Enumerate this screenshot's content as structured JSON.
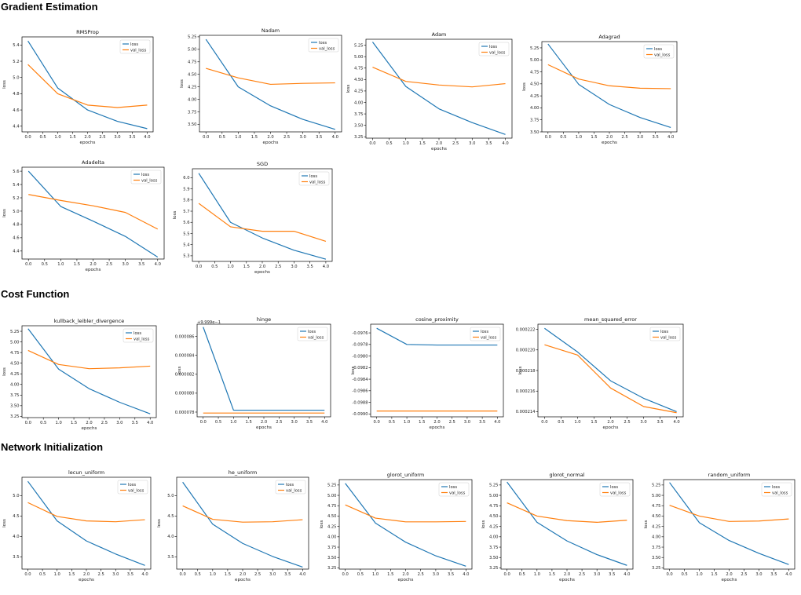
{
  "sections": {
    "gradient": "Gradient Estimation",
    "cost": "Cost Function",
    "init": "Network Initialization"
  },
  "colors": {
    "loss": "#1f77b4",
    "val_loss": "#ff7f0e"
  },
  "chart_data": [
    {
      "type": "line",
      "title": "RMSProp",
      "xlabel": "epochs",
      "ylabel": "loss",
      "x": [
        0,
        1,
        2,
        3,
        4
      ],
      "xlim": [
        -0.2,
        4.2
      ],
      "xticks": [
        "0.0",
        "0.5",
        "1.0",
        "1.5",
        "2.0",
        "2.5",
        "3.0",
        "3.5",
        "4.0"
      ],
      "ylim": [
        4.33,
        5.5
      ],
      "yticks": [
        "4.4",
        "4.6",
        "4.8",
        "5.0",
        "5.2",
        "5.4"
      ],
      "series": [
        {
          "name": "loss",
          "values": [
            5.45,
            4.87,
            4.6,
            4.46,
            4.37
          ]
        },
        {
          "name": "val_loss",
          "values": [
            5.16,
            4.8,
            4.66,
            4.63,
            4.66
          ]
        }
      ]
    },
    {
      "type": "line",
      "title": "Nadam",
      "xlabel": "epochs",
      "ylabel": "loss",
      "x": [
        0,
        1,
        2,
        3,
        4
      ],
      "xlim": [
        -0.2,
        4.2
      ],
      "xticks": [
        "0.0",
        "0.5",
        "1.0",
        "1.5",
        "2.0",
        "2.5",
        "3.0",
        "3.5",
        "4.0"
      ],
      "ylim": [
        3.35,
        5.28
      ],
      "yticks": [
        "3.50",
        "3.75",
        "4.00",
        "4.25",
        "4.50",
        "4.75",
        "5.00",
        "5.25"
      ],
      "series": [
        {
          "name": "loss",
          "values": [
            5.2,
            4.25,
            3.87,
            3.6,
            3.4
          ]
        },
        {
          "name": "val_loss",
          "values": [
            4.62,
            4.43,
            4.3,
            4.32,
            4.33
          ]
        }
      ]
    },
    {
      "type": "line",
      "title": "Adam",
      "xlabel": "epochs",
      "ylabel": "loss",
      "x": [
        0,
        1,
        2,
        3,
        4
      ],
      "xlim": [
        -0.2,
        4.2
      ],
      "xticks": [
        "0.0",
        "0.5",
        "1.0",
        "1.5",
        "2.0",
        "2.5",
        "3.0",
        "3.5",
        "4.0"
      ],
      "ylim": [
        3.22,
        5.38
      ],
      "yticks": [
        "3.25",
        "3.50",
        "3.75",
        "4.00",
        "4.25",
        "4.50",
        "4.75",
        "5.00",
        "5.25"
      ],
      "series": [
        {
          "name": "loss",
          "values": [
            5.32,
            4.35,
            3.86,
            3.56,
            3.3
          ]
        },
        {
          "name": "val_loss",
          "values": [
            4.77,
            4.46,
            4.38,
            4.34,
            4.41
          ]
        }
      ]
    },
    {
      "type": "line",
      "title": "Adagrad",
      "xlabel": "epochs",
      "ylabel": "loss",
      "x": [
        0,
        1,
        2,
        3,
        4
      ],
      "xlim": [
        -0.2,
        4.2
      ],
      "xticks": [
        "0.0",
        "0.5",
        "1.0",
        "1.5",
        "2.0",
        "2.5",
        "3.0",
        "3.5",
        "4.0"
      ],
      "ylim": [
        3.5,
        5.38
      ],
      "yticks": [
        "3.50",
        "3.75",
        "4.00",
        "4.25",
        "4.50",
        "4.75",
        "5.00",
        "5.25"
      ],
      "series": [
        {
          "name": "loss",
          "values": [
            5.33,
            4.49,
            4.07,
            3.8,
            3.59
          ]
        },
        {
          "name": "val_loss",
          "values": [
            4.9,
            4.6,
            4.46,
            4.41,
            4.4
          ]
        }
      ]
    },
    {
      "type": "line",
      "title": "Adadelta",
      "xlabel": "epochs",
      "ylabel": "loss",
      "x": [
        0,
        1,
        2,
        3,
        4
      ],
      "xlim": [
        -0.2,
        4.2
      ],
      "xticks": [
        "0.0",
        "0.5",
        "1.0",
        "1.5",
        "2.0",
        "2.5",
        "3.0",
        "3.5",
        "4.0"
      ],
      "ylim": [
        4.28,
        5.66
      ],
      "yticks": [
        "4.4",
        "4.6",
        "4.8",
        "5.0",
        "5.2",
        "5.4",
        "5.6"
      ],
      "series": [
        {
          "name": "loss",
          "values": [
            5.6,
            5.07,
            4.85,
            4.62,
            4.31
          ]
        },
        {
          "name": "val_loss",
          "values": [
            5.25,
            5.16,
            5.08,
            4.98,
            4.73
          ]
        }
      ]
    },
    {
      "type": "line",
      "title": "SGD",
      "xlabel": "epochs",
      "ylabel": "loss",
      "x": [
        0,
        1,
        2,
        3,
        4
      ],
      "xlim": [
        -0.2,
        4.2
      ],
      "xticks": [
        "0.0",
        "0.5",
        "1.0",
        "1.5",
        "2.0",
        "2.5",
        "3.0",
        "3.5",
        "4.0"
      ],
      "ylim": [
        5.25,
        6.08
      ],
      "yticks": [
        "5.3",
        "5.4",
        "5.5",
        "5.6",
        "5.7",
        "5.8",
        "5.9",
        "6.0"
      ],
      "series": [
        {
          "name": "loss",
          "values": [
            6.04,
            5.6,
            5.46,
            5.35,
            5.27
          ]
        },
        {
          "name": "val_loss",
          "values": [
            5.77,
            5.56,
            5.52,
            5.52,
            5.43
          ]
        }
      ]
    },
    {
      "type": "line",
      "title": "kullback_leibler_divergence",
      "xlabel": "epochs",
      "ylabel": "loss",
      "x": [
        0,
        1,
        2,
        3,
        4
      ],
      "xlim": [
        -0.2,
        4.2
      ],
      "xticks": [
        "0.0",
        "0.5",
        "1.0",
        "1.5",
        "2.0",
        "2.5",
        "3.0",
        "3.5",
        "4.0"
      ],
      "ylim": [
        3.22,
        5.38
      ],
      "yticks": [
        "3.25",
        "3.50",
        "3.75",
        "4.00",
        "4.25",
        "4.50",
        "4.75",
        "5.00",
        "5.25"
      ],
      "series": [
        {
          "name": "loss",
          "values": [
            5.31,
            4.36,
            3.9,
            3.58,
            3.31
          ]
        },
        {
          "name": "val_loss",
          "values": [
            4.8,
            4.47,
            4.37,
            4.39,
            4.43
          ]
        }
      ]
    },
    {
      "type": "line",
      "title": "hinge",
      "xlabel": "epochs",
      "ylabel": "loss",
      "offset": "+9.999e−1",
      "x": [
        0,
        1,
        2,
        3,
        4
      ],
      "xlim": [
        -0.2,
        4.2
      ],
      "xticks": [
        "0.0",
        "0.5",
        "1.0",
        "1.5",
        "2.0",
        "2.5",
        "3.0",
        "3.5",
        "4.0"
      ],
      "ylim": [
        7.75e-05,
        8.73e-05
      ],
      "yticks": [
        "0.000078",
        "0.000080",
        "0.000082",
        "0.000084",
        "0.000086"
      ],
      "series": [
        {
          "name": "loss",
          "values": [
            8.7e-05,
            7.82e-05,
            7.82e-05,
            7.82e-05,
            7.82e-05
          ]
        },
        {
          "name": "val_loss",
          "values": [
            7.79e-05,
            7.79e-05,
            7.79e-05,
            7.79e-05,
            7.79e-05
          ]
        }
      ]
    },
    {
      "type": "line",
      "title": "cosine_proximity",
      "xlabel": "epochs",
      "ylabel": "loss",
      "x": [
        0,
        1,
        2,
        3,
        4
      ],
      "xlim": [
        -0.2,
        4.2
      ],
      "xticks": [
        "0.0",
        "0.5",
        "1.0",
        "1.5",
        "2.0",
        "2.5",
        "3.0",
        "3.5",
        "4.0"
      ],
      "ylim": [
        -0.09905,
        -0.09745
      ],
      "yticks": [
        "-0.0976",
        "-0.0978",
        "-0.0980",
        "-0.0982",
        "-0.0984",
        "-0.0986",
        "-0.0988",
        "-0.0990"
      ],
      "series": [
        {
          "name": "loss",
          "values": [
            -0.09752,
            -0.0978,
            -0.09781,
            -0.09781,
            -0.09781
          ]
        },
        {
          "name": "val_loss",
          "values": [
            -0.09895,
            -0.09895,
            -0.09895,
            -0.09895,
            -0.09895
          ]
        }
      ]
    },
    {
      "type": "line",
      "title": "mean_squared_error",
      "xlabel": "epochs",
      "ylabel": "loss",
      "x": [
        0,
        1,
        2,
        3,
        4
      ],
      "xlim": [
        -0.2,
        4.2
      ],
      "xticks": [
        "0.0",
        "0.5",
        "1.0",
        "1.5",
        "2.0",
        "2.5",
        "3.0",
        "3.5",
        "4.0"
      ],
      "ylim": [
        0.0002135,
        0.0002225
      ],
      "yticks": [
        "0.000214",
        "0.000216",
        "0.000218",
        "0.000220",
        "0.000222"
      ],
      "series": [
        {
          "name": "loss",
          "values": [
            0.0002221,
            0.0002198,
            0.000217,
            0.0002153,
            0.000214
          ]
        },
        {
          "name": "val_loss",
          "values": [
            0.0002205,
            0.0002195,
            0.0002163,
            0.0002145,
            0.0002139
          ]
        }
      ]
    },
    {
      "type": "line",
      "title": "lecun_uniform",
      "xlabel": "epochs",
      "ylabel": "loss",
      "x": [
        0,
        1,
        2,
        3,
        4
      ],
      "xlim": [
        -0.2,
        4.2
      ],
      "xticks": [
        "0.0",
        "0.5",
        "1.0",
        "1.5",
        "2.0",
        "2.5",
        "3.0",
        "3.5",
        "4.0"
      ],
      "ylim": [
        3.2,
        5.45
      ],
      "yticks": [
        "3.5",
        "4.0",
        "4.5",
        "5.0"
      ],
      "series": [
        {
          "name": "loss",
          "values": [
            5.35,
            4.38,
            3.89,
            3.57,
            3.29
          ]
        },
        {
          "name": "val_loss",
          "values": [
            4.83,
            4.49,
            4.38,
            4.36,
            4.41
          ]
        }
      ]
    },
    {
      "type": "line",
      "title": "he_uniform",
      "xlabel": "epochs",
      "ylabel": "loss",
      "x": [
        0,
        1,
        2,
        3,
        4
      ],
      "xlim": [
        -0.2,
        4.2
      ],
      "xticks": [
        "0.0",
        "0.5",
        "1.0",
        "1.5",
        "2.0",
        "2.5",
        "3.0",
        "3.5",
        "4.0"
      ],
      "ylim": [
        3.2,
        5.45
      ],
      "yticks": [
        "3.5",
        "4.0",
        "4.5",
        "5.0"
      ],
      "series": [
        {
          "name": "loss",
          "values": [
            5.33,
            4.3,
            3.83,
            3.51,
            3.25
          ]
        },
        {
          "name": "val_loss",
          "values": [
            4.75,
            4.42,
            4.35,
            4.36,
            4.41
          ]
        }
      ]
    },
    {
      "type": "line",
      "title": "glorot_uniform",
      "xlabel": "epochs",
      "ylabel": "loss",
      "x": [
        0,
        1,
        2,
        3,
        4
      ],
      "xlim": [
        -0.2,
        4.2
      ],
      "xticks": [
        "0.0",
        "0.5",
        "1.0",
        "1.5",
        "2.0",
        "2.5",
        "3.0",
        "3.5",
        "4.0"
      ],
      "ylim": [
        3.22,
        5.38
      ],
      "yticks": [
        "3.25",
        "3.50",
        "3.75",
        "4.00",
        "4.25",
        "4.50",
        "4.75",
        "5.00",
        "5.25"
      ],
      "series": [
        {
          "name": "loss",
          "values": [
            5.29,
            4.33,
            3.87,
            3.54,
            3.29
          ]
        },
        {
          "name": "val_loss",
          "values": [
            4.77,
            4.45,
            4.36,
            4.36,
            4.37
          ]
        }
      ]
    },
    {
      "type": "line",
      "title": "glorot_normal",
      "xlabel": "epochs",
      "ylabel": "loss",
      "x": [
        0,
        1,
        2,
        3,
        4
      ],
      "xlim": [
        -0.2,
        4.2
      ],
      "xticks": [
        "0.0",
        "0.5",
        "1.0",
        "1.5",
        "2.0",
        "2.5",
        "3.0",
        "3.5",
        "4.0"
      ],
      "ylim": [
        3.22,
        5.38
      ],
      "yticks": [
        "3.25",
        "3.50",
        "3.75",
        "4.00",
        "4.25",
        "4.50",
        "4.75",
        "5.00",
        "5.25"
      ],
      "series": [
        {
          "name": "loss",
          "values": [
            5.32,
            4.35,
            3.9,
            3.57,
            3.31
          ]
        },
        {
          "name": "val_loss",
          "values": [
            4.82,
            4.5,
            4.39,
            4.35,
            4.4
          ]
        }
      ]
    },
    {
      "type": "line",
      "title": "random_uniform",
      "xlabel": "epochs",
      "ylabel": "loss",
      "x": [
        0,
        1,
        2,
        3,
        4
      ],
      "xlim": [
        -0.2,
        4.2
      ],
      "xticks": [
        "0.0",
        "0.5",
        "1.0",
        "1.5",
        "2.0",
        "2.5",
        "3.0",
        "3.5",
        "4.0"
      ],
      "ylim": [
        3.22,
        5.38
      ],
      "yticks": [
        "3.25",
        "3.50",
        "3.75",
        "4.00",
        "4.25",
        "4.50",
        "4.75",
        "5.00",
        "5.25"
      ],
      "series": [
        {
          "name": "loss",
          "values": [
            5.31,
            4.34,
            3.91,
            3.6,
            3.33
          ]
        },
        {
          "name": "val_loss",
          "values": [
            4.76,
            4.5,
            4.37,
            4.38,
            4.43
          ]
        }
      ]
    }
  ]
}
